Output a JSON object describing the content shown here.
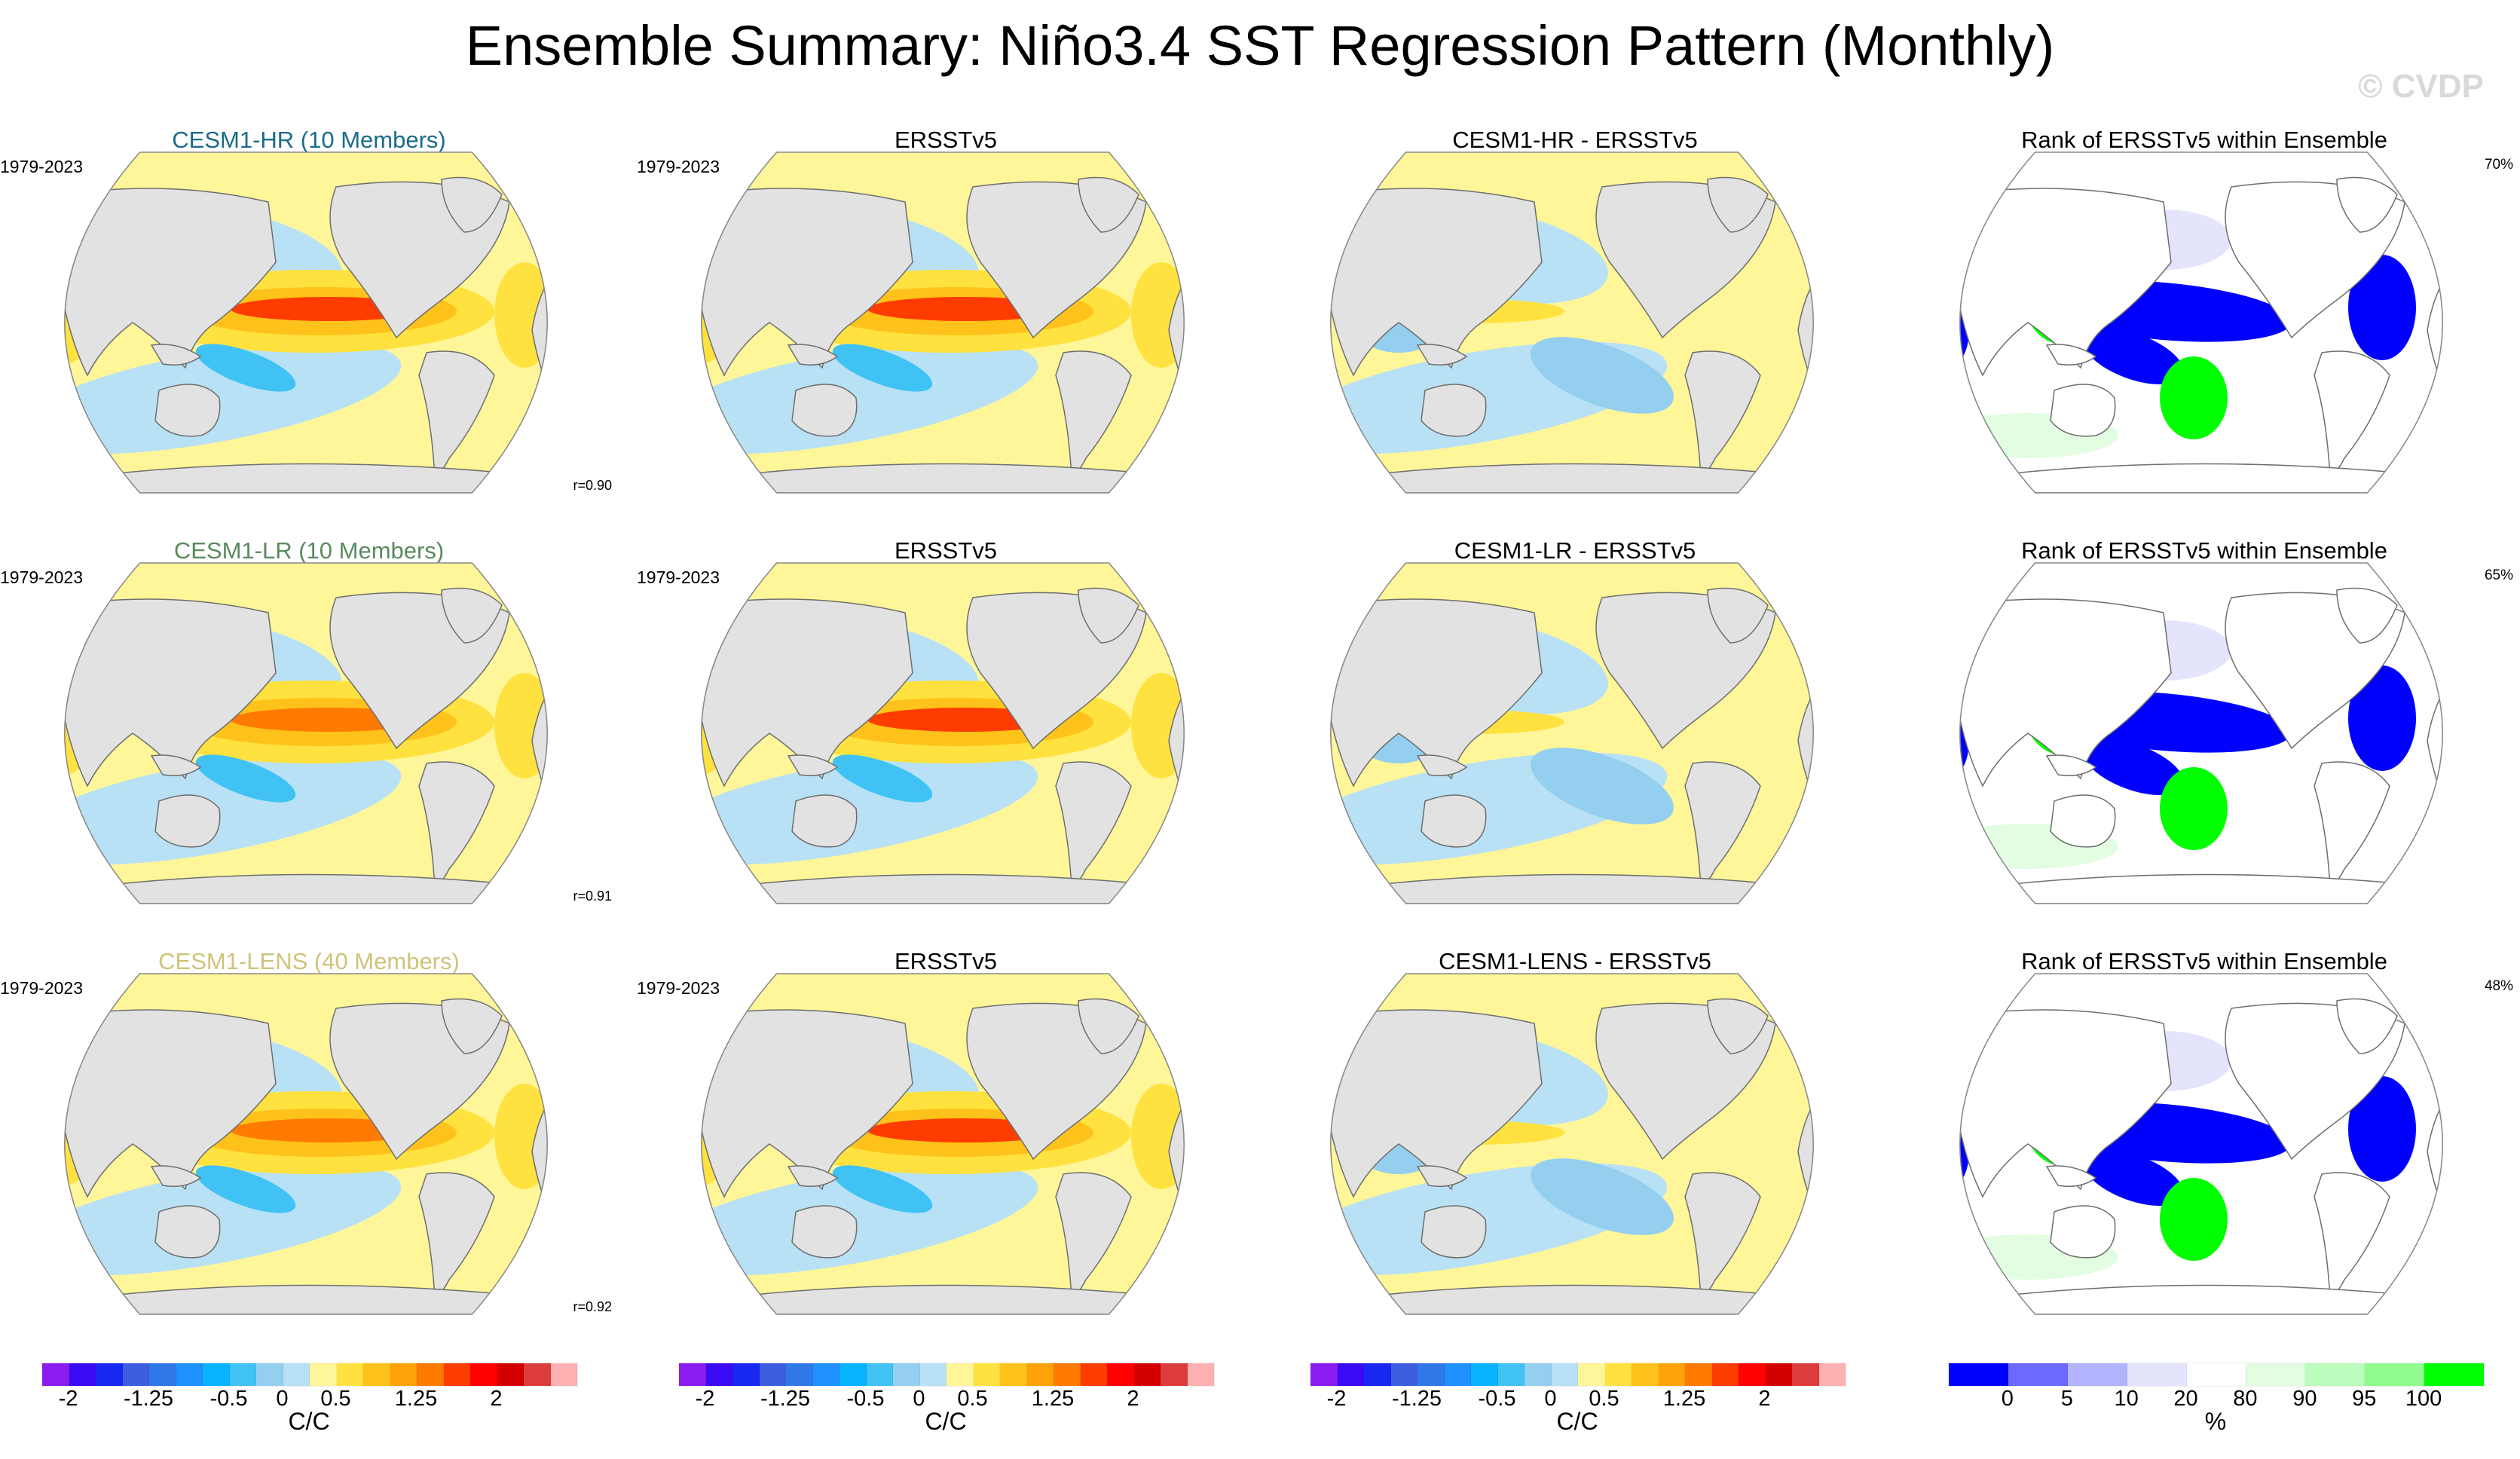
{
  "title": "Ensemble Summary: Niño3.4 SST Regression Pattern (Monthly)",
  "watermark": "© CVDP",
  "colors": {
    "land": "#e2e2e2",
    "coast": "#6e6e6e",
    "model_title_colors": {
      "CESM1-HR": "#1a6b8c",
      "CESM1-LR": "#5a8a5e",
      "CESM1-LENS": "#cfc37a"
    }
  },
  "chart_data": [
    {
      "type": "heatmap",
      "projection": "Robinson (Pacific-centered)",
      "rows": [
        {
          "model": "CESM1-HR (10 Members)",
          "model_title_color": "#1a6b8c",
          "period": "1979-2023",
          "panels": [
            {
              "title": "CESM1-HR (10 Members)",
              "period": "1979-2023",
              "annotation": "r=0.90",
              "field": "regression",
              "max_equatorial_value": 1.5
            },
            {
              "title": "ERSSTv5",
              "period": "1979-2023",
              "field": "regression",
              "max_equatorial_value": 1.5
            },
            {
              "title": "CESM1-HR - ERSSTv5",
              "field": "difference",
              "max_equatorial_value": 0.5
            },
            {
              "title": "Rank of ERSSTv5 within Ensemble",
              "annotation": "70%",
              "field": "rank"
            }
          ]
        },
        {
          "model": "CESM1-LR (10 Members)",
          "model_title_color": "#5a8a5e",
          "period": "1979-2023",
          "panels": [
            {
              "title": "CESM1-LR (10 Members)",
              "period": "1979-2023",
              "annotation": "r=0.91",
              "field": "regression",
              "max_equatorial_value": 1.25
            },
            {
              "title": "ERSSTv5",
              "period": "1979-2023",
              "field": "regression",
              "max_equatorial_value": 1.5
            },
            {
              "title": "CESM1-LR - ERSSTv5",
              "field": "difference",
              "max_equatorial_value": 0.5
            },
            {
              "title": "Rank of ERSSTv5 within Ensemble",
              "annotation": "65%",
              "field": "rank"
            }
          ]
        },
        {
          "model": "CESM1-LENS (40 Members)",
          "model_title_color": "#cfc37a",
          "period": "1979-2023",
          "panels": [
            {
              "title": "CESM1-LENS (40 Members)",
              "period": "1979-2023",
              "annotation": "r=0.92",
              "field": "regression",
              "max_equatorial_value": 1.25
            },
            {
              "title": "ERSSTv5",
              "period": "1979-2023",
              "field": "regression",
              "max_equatorial_value": 1.5
            },
            {
              "title": "CESM1-LENS - ERSSTv5",
              "field": "difference",
              "max_equatorial_value": 0.5
            },
            {
              "title": "Rank of ERSSTv5 within Ensemble",
              "annotation": "48%",
              "field": "rank"
            }
          ]
        }
      ],
      "colorbars": [
        {
          "unit": "C/C",
          "levels": [
            -2,
            -1.75,
            -1.5,
            -1.25,
            -1,
            -0.75,
            -0.5,
            -0.25,
            0,
            0.25,
            0.5,
            0.75,
            1,
            1.25,
            1.5,
            1.75,
            2
          ],
          "tick_labels": [
            "-2",
            "-1.25",
            "-0.5",
            "0",
            "0.5",
            "1.25",
            "2"
          ],
          "tick_values": [
            -2,
            -1.25,
            -0.5,
            0,
            0.5,
            1.25,
            2
          ],
          "colors": [
            "#8a1cf0",
            "#3a0af5",
            "#1828f2",
            "#3e5ee0",
            "#2f78e8",
            "#1e90ff",
            "#08b4ff",
            "#40c2f5",
            "#94cff0",
            "#b9e1f5",
            "#fff699",
            "#ffe23f",
            "#ffc21a",
            "#ffa20a",
            "#ff7a00",
            "#ff3c00",
            "#ff0000",
            "#d40000",
            "#dc3c3c",
            "#ffb0b0"
          ]
        },
        {
          "unit": "%",
          "levels": [
            0,
            5,
            10,
            20,
            80,
            90,
            95,
            100
          ],
          "tick_labels": [
            "0",
            "5",
            "10",
            "20",
            "80",
            "90",
            "95",
            "100"
          ],
          "tick_values": [
            0,
            5,
            10,
            20,
            80,
            90,
            95,
            100
          ],
          "colors": [
            "#0000ff",
            "#6a6aff",
            "#b2b2ff",
            "#e4e4fc",
            "#ffffff",
            "#e2fde2",
            "#bcfcbc",
            "#90fc90",
            "#00ff00"
          ]
        }
      ]
    }
  ]
}
